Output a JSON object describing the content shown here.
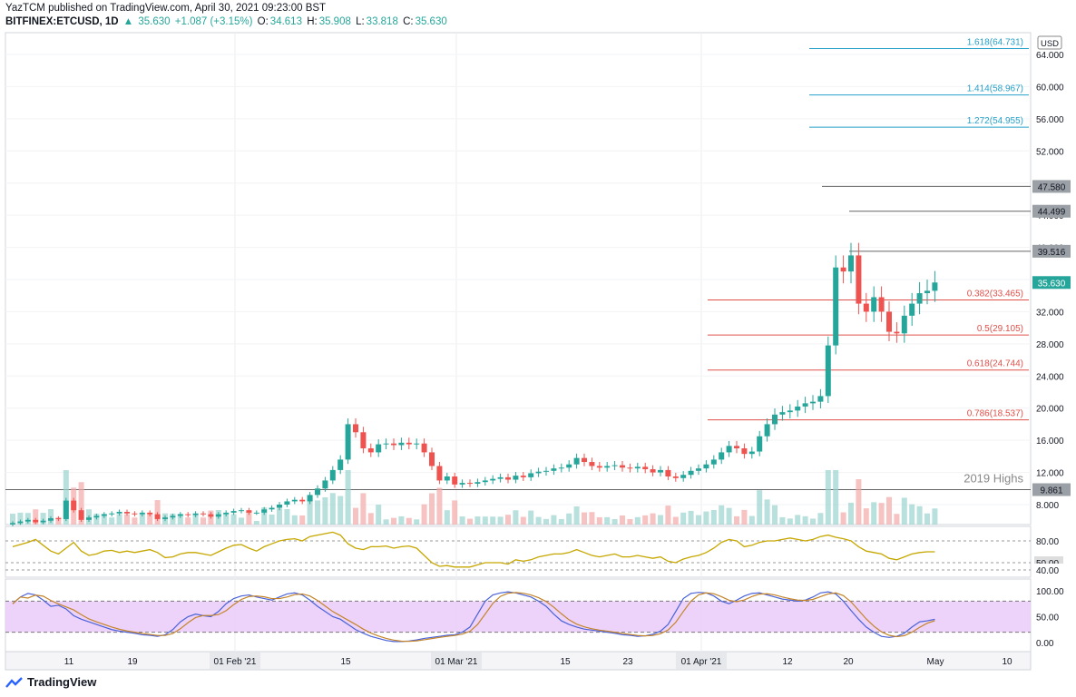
{
  "header": {
    "publisher_line": "YazTCM published on TradingView.com, April 30, 2021 09:23:00 BST",
    "symbol": "BITFINEX:ETCUSD, 1D",
    "last": "35.630",
    "change": "+1.087 (+3.15%)",
    "open_label": "O:",
    "open": "34.613",
    "high_label": "H:",
    "high": "35.908",
    "low_label": "L:",
    "low": "33.818",
    "close_label": "C:",
    "close": "35.630"
  },
  "footer": {
    "brand": "TradingView"
  },
  "colors": {
    "up": "#26a69a",
    "down": "#ef5350",
    "fib": "#26a0c8",
    "retrace": "#e0504a",
    "rsi": "#c6a700",
    "stoch_k": "#4a62d8",
    "stoch_d": "#c4842a",
    "stoch_band": "#e8c8f8"
  },
  "chart_data": {
    "type": "candlestick",
    "currency": "USD",
    "yticks": [
      "64.000",
      "60.000",
      "56.000",
      "52.000",
      "48.000",
      "44.000",
      "40.000",
      "36.000",
      "32.000",
      "28.000",
      "24.000",
      "20.000",
      "16.000",
      "12.000",
      "8.000"
    ],
    "xticks": [
      "11",
      "19",
      "01 Feb '21",
      "15",
      "01 Mar '21",
      "15",
      "23",
      "01 Apr '21",
      "12",
      "20",
      "May",
      "10"
    ],
    "fib_extensions": [
      {
        "label": "1.618(64.731)",
        "value": 64.731
      },
      {
        "label": "1.414(58.967)",
        "value": 58.967
      },
      {
        "label": "1.272(54.955)",
        "value": 54.955
      }
    ],
    "levels": [
      {
        "label": "47.580",
        "value": 47.58
      },
      {
        "label": "44.499",
        "value": 44.499
      },
      {
        "label": "39.516",
        "value": 39.516
      },
      {
        "label": "9.861",
        "value": 9.861
      }
    ],
    "retracements": [
      {
        "label": "0.382(33.465)",
        "value": 33.465
      },
      {
        "label": "0.5(29.105)",
        "value": 29.105
      },
      {
        "label": "0.618(24.744)",
        "value": 24.744
      },
      {
        "label": "0.786(18.537)",
        "value": 18.537
      }
    ],
    "annotation": "2019 Highs",
    "last_price": "35.630",
    "closes": [
      5.7,
      5.9,
      6.1,
      5.8,
      6.0,
      6.3,
      6.2,
      8.5,
      7.3,
      6.1,
      6.4,
      6.6,
      6.8,
      6.9,
      7.1,
      6.9,
      6.8,
      7.0,
      6.8,
      6.2,
      6.4,
      6.6,
      6.8,
      6.7,
      6.9,
      6.8,
      6.5,
      6.8,
      7.0,
      7.2,
      7.3,
      7.0,
      7.0,
      7.4,
      7.6,
      8.0,
      8.4,
      8.6,
      8.4,
      9.2,
      10.0,
      11.0,
      12.3,
      13.6,
      18.0,
      17.0,
      15.0,
      14.5,
      15.5,
      15.6,
      15.4,
      15.7,
      15.5,
      15.6,
      14.5,
      12.8,
      11.0,
      11.5,
      10.5,
      10.7,
      10.6,
      10.8,
      11.0,
      11.2,
      11.4,
      11.1,
      11.6,
      11.4,
      11.9,
      12.1,
      12.2,
      12.5,
      12.6,
      13.0,
      13.8,
      13.3,
      12.8,
      12.6,
      12.8,
      12.9,
      12.6,
      12.5,
      12.7,
      12.4,
      12.0,
      12.3,
      11.5,
      11.3,
      11.7,
      12.2,
      12.5,
      13.0,
      13.6,
      14.5,
      15.3,
      15.0,
      14.3,
      14.6,
      16.5,
      18.0,
      19.2,
      19.5,
      19.7,
      20.2,
      20.6,
      20.8,
      21.5,
      27.8,
      37.5,
      37.0,
      39.0,
      33.0,
      32.0,
      33.8,
      32.0,
      29.5,
      29.3,
      31.5,
      33.0,
      34.3,
      34.6,
      35.63
    ],
    "rsi": {
      "levels": [
        "80.00",
        "50.00",
        "40.00"
      ],
      "values": [
        72,
        75,
        78,
        82,
        74,
        66,
        62,
        70,
        78,
        66,
        60,
        62,
        66,
        67,
        64,
        66,
        64,
        66,
        68,
        64,
        57,
        58,
        62,
        64,
        64,
        62,
        60,
        65,
        70,
        74,
        75,
        70,
        66,
        72,
        76,
        80,
        82,
        83,
        80,
        86,
        88,
        90,
        92,
        88,
        76,
        70,
        68,
        72,
        72,
        73,
        70,
        72,
        73,
        70,
        60,
        50,
        45,
        46,
        44,
        44,
        44,
        47,
        50,
        50,
        50,
        48,
        54,
        52,
        54,
        58,
        60,
        62,
        62,
        64,
        68,
        64,
        60,
        58,
        60,
        62,
        58,
        58,
        60,
        58,
        56,
        58,
        52,
        50,
        55,
        58,
        60,
        64,
        70,
        78,
        82,
        80,
        72,
        74,
        78,
        80,
        80,
        82,
        84,
        82,
        80,
        82,
        86,
        88,
        85,
        83,
        80,
        72,
        66,
        64,
        62,
        56,
        54,
        58,
        62,
        64,
        65,
        65
      ]
    },
    "stoch": {
      "levels": [
        "100.00",
        "50.00",
        "0.00"
      ],
      "k": [
        75,
        88,
        95,
        92,
        82,
        70,
        72,
        65,
        52,
        45,
        40,
        35,
        30,
        25,
        22,
        20,
        18,
        15,
        14,
        12,
        15,
        25,
        40,
        50,
        55,
        52,
        50,
        60,
        75,
        85,
        90,
        92,
        88,
        85,
        82,
        88,
        94,
        96,
        92,
        82,
        70,
        60,
        50,
        45,
        35,
        25,
        18,
        12,
        8,
        4,
        2,
        2,
        3,
        5,
        8,
        10,
        12,
        14,
        15,
        20,
        30,
        55,
        80,
        92,
        96,
        98,
        96,
        92,
        88,
        80,
        70,
        55,
        42,
        35,
        30,
        26,
        24,
        22,
        20,
        18,
        15,
        14,
        12,
        13,
        16,
        22,
        35,
        60,
        85,
        95,
        97,
        96,
        90,
        80,
        75,
        82,
        90,
        95,
        96,
        92,
        88,
        84,
        82,
        80,
        82,
        88,
        96,
        98,
        94,
        80,
        62,
        45,
        30,
        20,
        12,
        10,
        12,
        18,
        30,
        40,
        42,
        45
      ]
    }
  }
}
